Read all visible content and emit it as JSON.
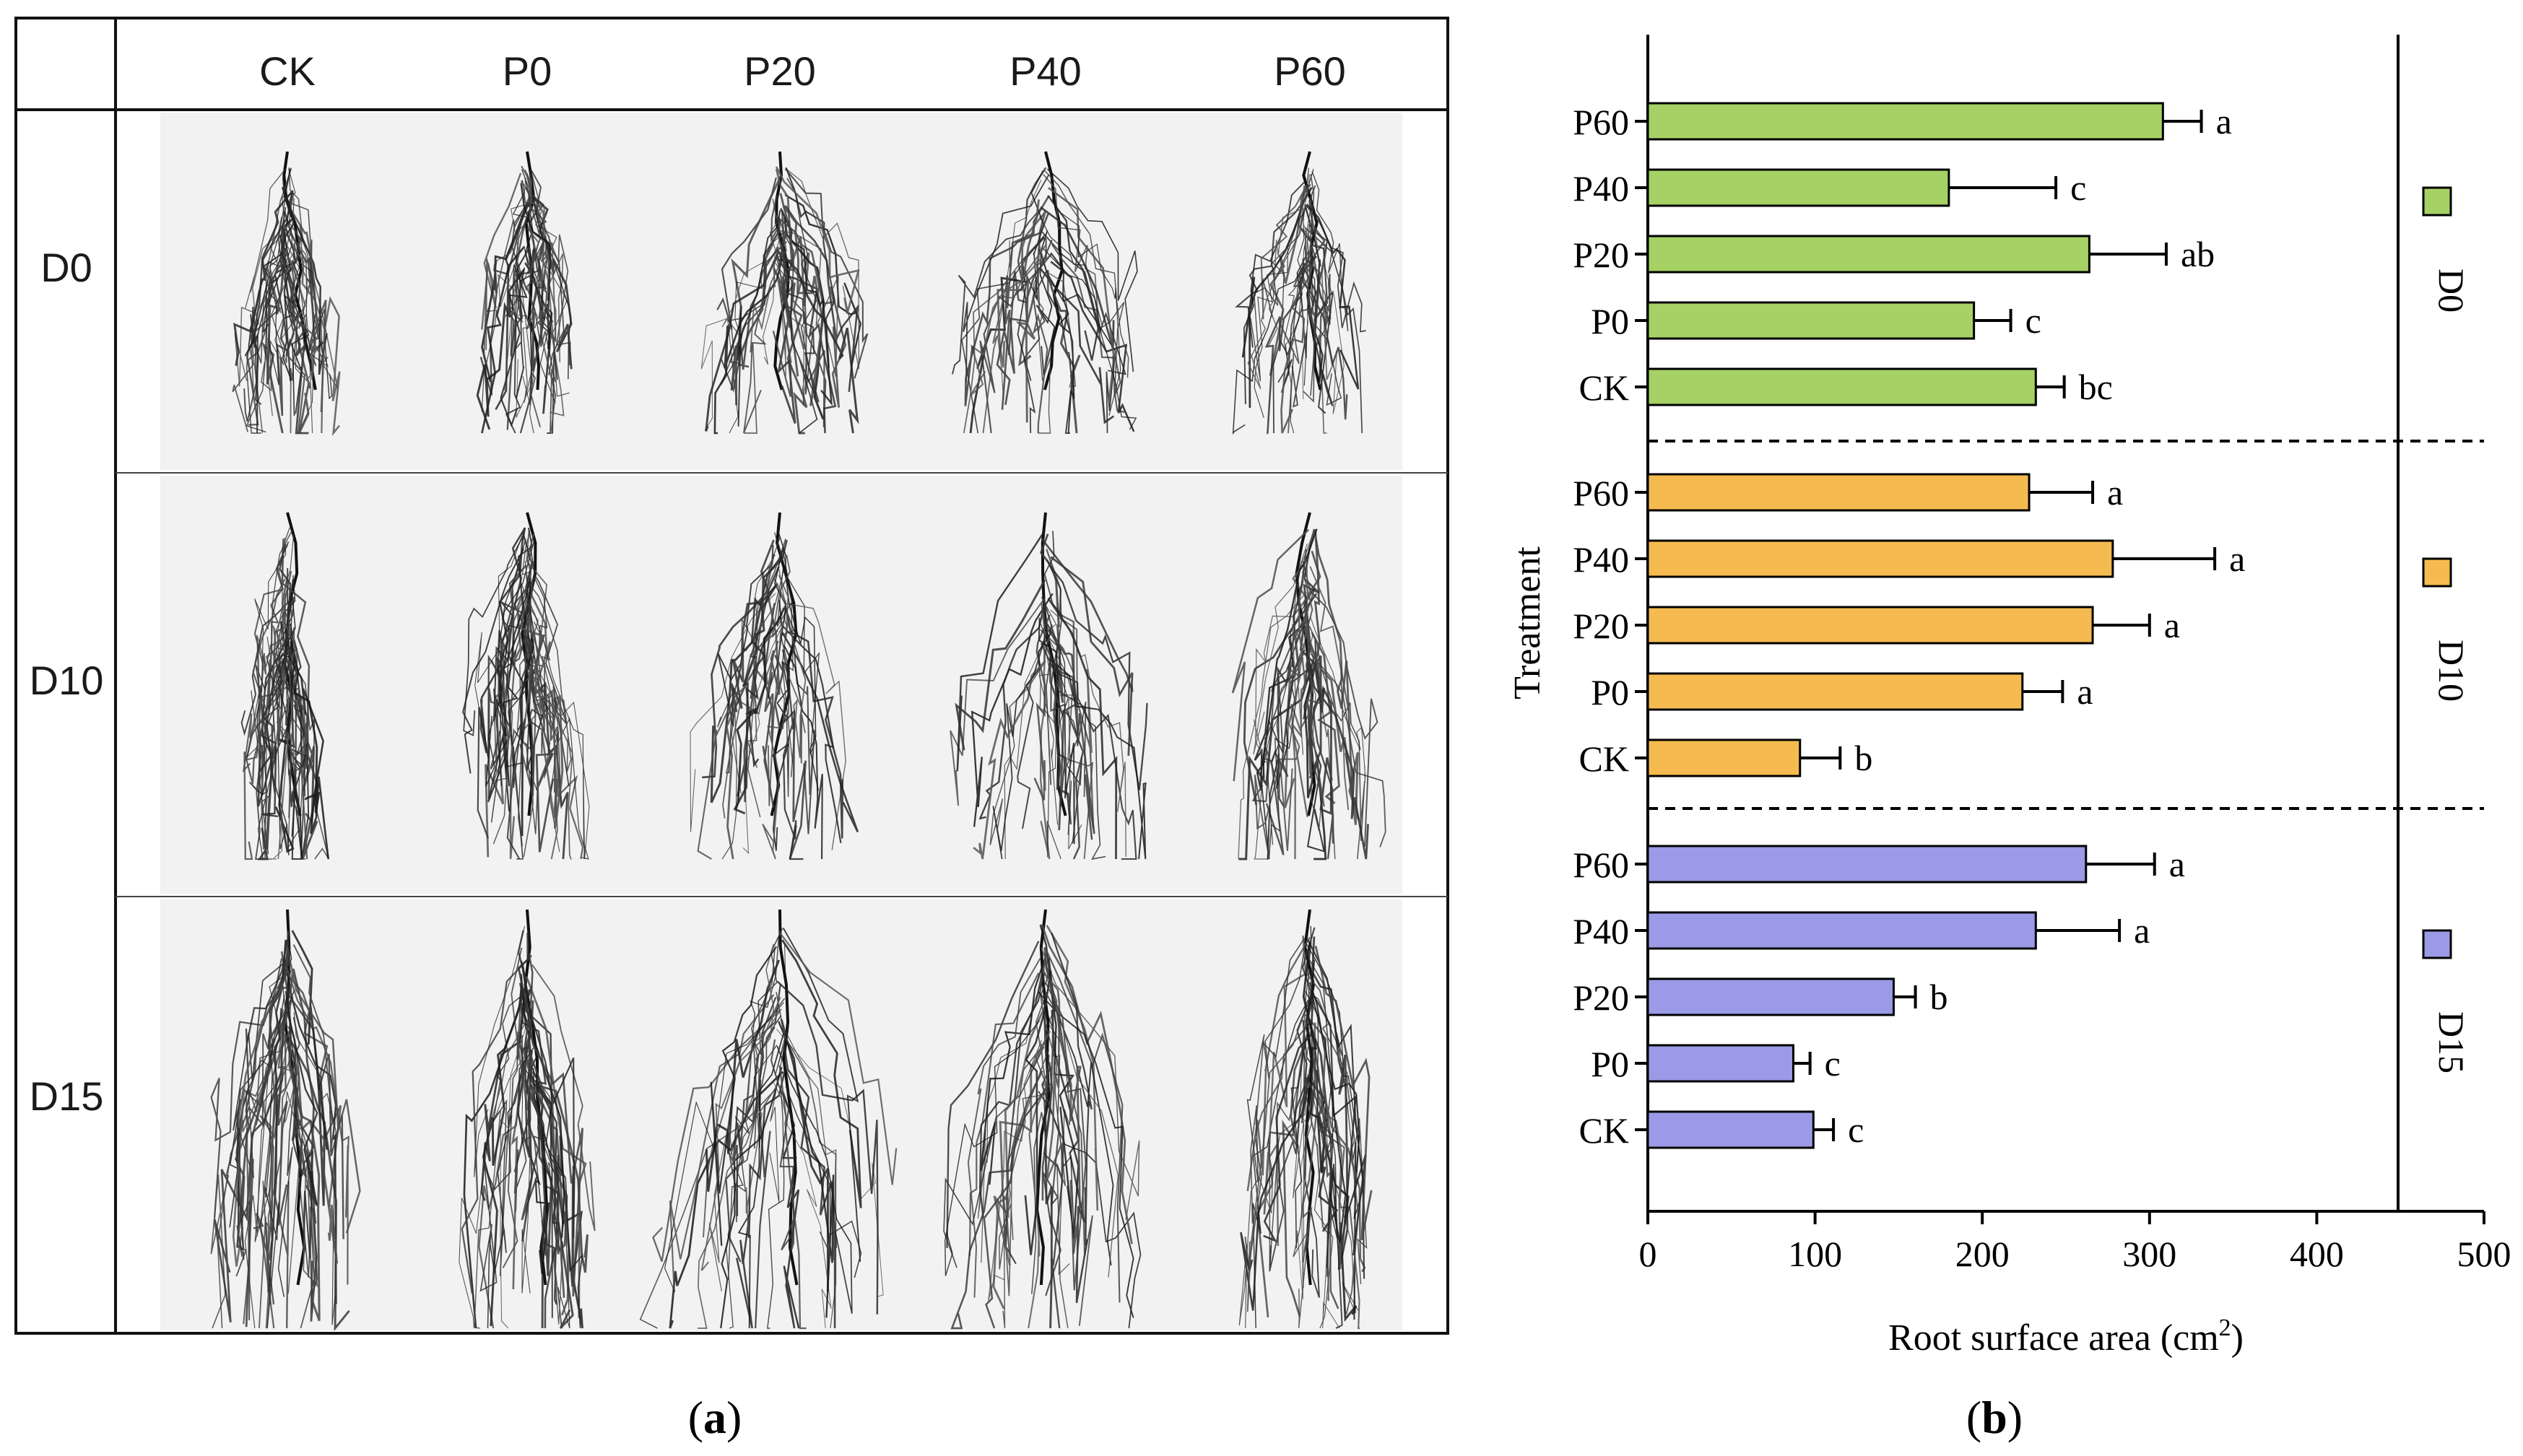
{
  "panel_a": {
    "columns": [
      "CK",
      "P0",
      "P20",
      "P40",
      "P60"
    ],
    "rows": [
      "D0",
      "D10",
      "D15"
    ],
    "caption_open": "(",
    "caption_letter": "a",
    "caption_close": ")"
  },
  "panel_b": {
    "caption_open": "(",
    "caption_letter": "b",
    "caption_close": ")"
  },
  "chart_data": {
    "type": "bar",
    "orientation": "horizontal",
    "xlabel": "Root surface area (cm",
    "xlabel_sup": "2",
    "xlabel_close": ")",
    "ylabel": "Treatment",
    "xlim": [
      0,
      500
    ],
    "xticks": [
      "0",
      "100",
      "200",
      "300",
      "400",
      "500"
    ],
    "xtick_values": [
      0,
      100,
      200,
      300,
      400,
      500
    ],
    "groups": [
      {
        "name": "D0",
        "color": "#a6d164",
        "categories": [
          "P60",
          "P40",
          "P20",
          "P0",
          "CK"
        ],
        "values": [
          308,
          180,
          264,
          195,
          232
        ],
        "errors": [
          23,
          64,
          46,
          22,
          17
        ],
        "letters": [
          "a",
          "c",
          "ab",
          "c",
          "bc"
        ]
      },
      {
        "name": "D10",
        "color": "#f5bb50",
        "categories": [
          "P60",
          "P40",
          "P20",
          "P0",
          "CK"
        ],
        "values": [
          228,
          278,
          266,
          224,
          91
        ],
        "errors": [
          38,
          61,
          34,
          24,
          24
        ],
        "letters": [
          "a",
          "a",
          "a",
          "a",
          "b"
        ]
      },
      {
        "name": "D15",
        "color": "#9a9ae6",
        "categories": [
          "P60",
          "P40",
          "P20",
          "P0",
          "CK"
        ],
        "values": [
          262,
          232,
          147,
          87,
          99
        ],
        "errors": [
          41,
          50,
          13,
          10,
          12
        ],
        "letters": [
          "a",
          "a",
          "b",
          "c",
          "c"
        ]
      }
    ]
  }
}
